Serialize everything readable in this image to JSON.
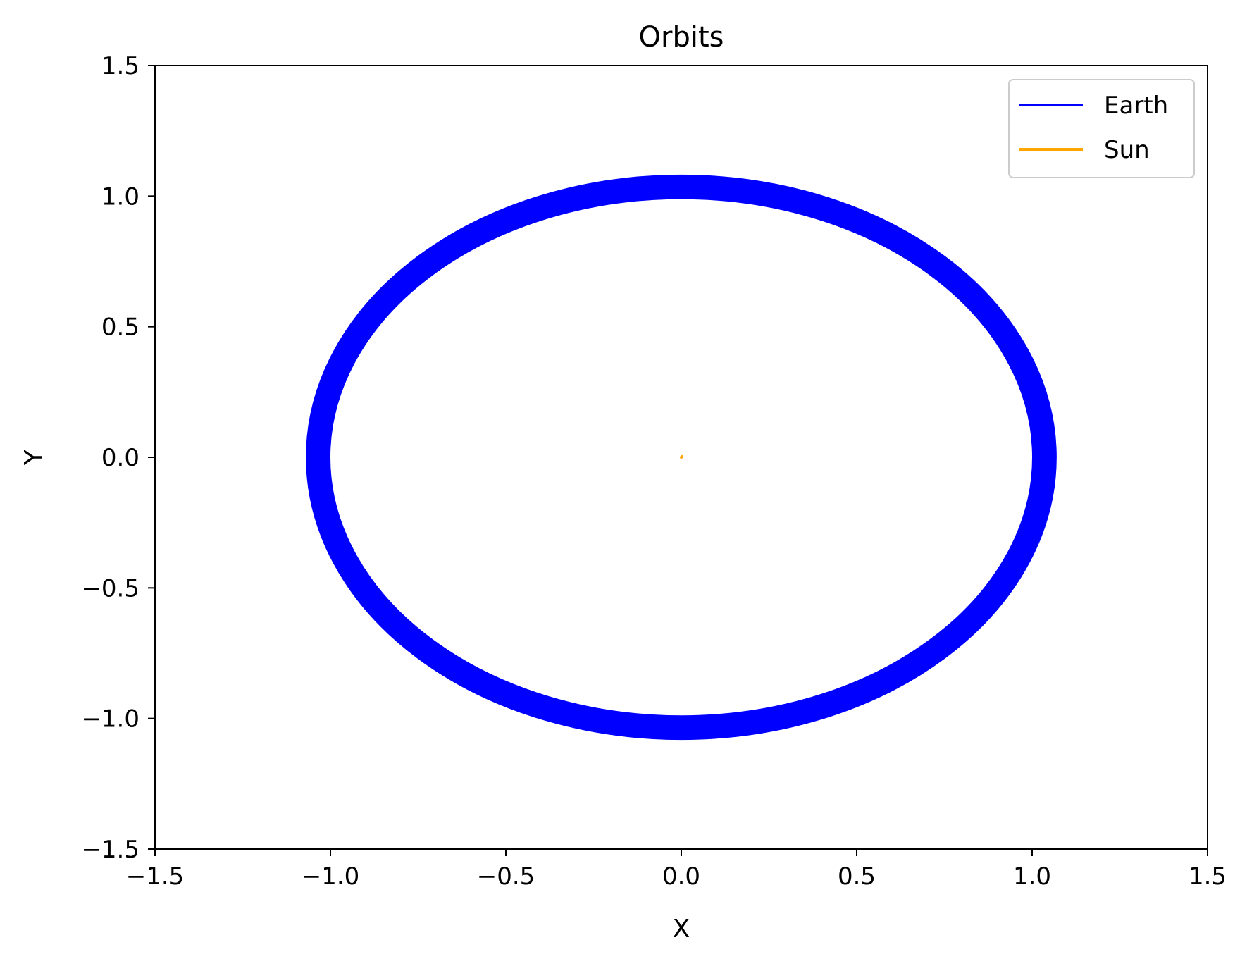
{
  "chart_data": {
    "type": "line",
    "title": "Orbits",
    "xlabel": "X",
    "ylabel": "Y",
    "xlim": [
      -1.5,
      1.5
    ],
    "ylim": [
      -1.5,
      1.5
    ],
    "xticks": [
      -1.5,
      -1.0,
      -0.5,
      0.0,
      0.5,
      1.0,
      1.5
    ],
    "yticks": [
      -1.5,
      -1.0,
      -0.5,
      0.0,
      0.5,
      1.0,
      1.5
    ],
    "xtick_labels": [
      "−1.5",
      "−1.0",
      "−0.5",
      "0.0",
      "0.5",
      "1.0",
      "1.5"
    ],
    "ytick_labels": [
      "−1.5",
      "−1.0",
      "−0.5",
      "0.0",
      "0.5",
      "1.0",
      "1.5"
    ],
    "grid": false,
    "legend_position": "top-right",
    "series": [
      {
        "name": "Earth",
        "color": "#0000ff",
        "orbit": {
          "center": [
            0.0,
            0.0
          ],
          "inner_radius": 1.0,
          "outer_radius": 1.07
        }
      },
      {
        "name": "Sun",
        "color": "#ffa500",
        "points": [
          [
            0.0,
            0.0
          ],
          [
            0.005,
            0.005
          ],
          [
            0.0,
            0.0
          ]
        ]
      }
    ]
  }
}
